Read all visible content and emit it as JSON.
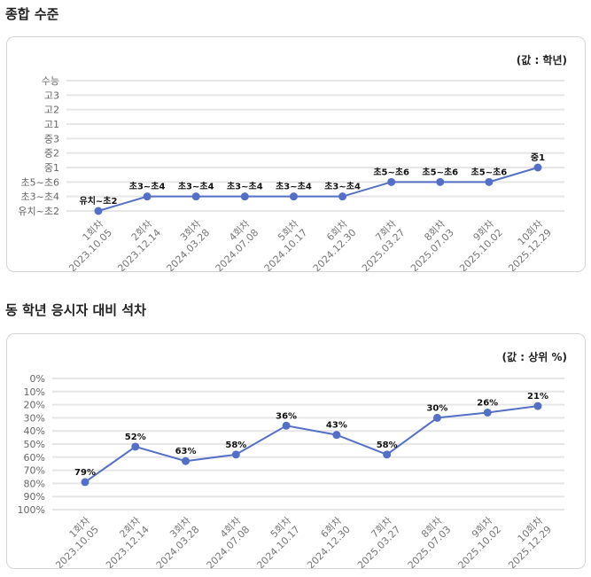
{
  "chart_data": [
    {
      "type": "line",
      "title": "종합 수준",
      "unit_label": "(값 : 학년)",
      "categories": [
        [
          "1회차",
          "2023.10.05"
        ],
        [
          "2회차",
          "2023.12.14"
        ],
        [
          "3회차",
          "2024.03.28"
        ],
        [
          "4회차",
          "2024.07.08"
        ],
        [
          "5회차",
          "2024.10.17"
        ],
        [
          "6회차",
          "2024.12.30"
        ],
        [
          "7회차",
          "2025.03.27"
        ],
        [
          "8회차",
          "2025.07.03"
        ],
        [
          "9회차",
          "2025.10.02"
        ],
        [
          "10회차",
          "2025.12.29"
        ]
      ],
      "y_ticks": [
        "유치~초2",
        "초3~초4",
        "초5~초6",
        "중1",
        "중2",
        "중3",
        "고1",
        "고2",
        "고3",
        "수능"
      ],
      "values": [
        "유치~초2",
        "초3~초4",
        "초3~초4",
        "초3~초4",
        "초3~초4",
        "초3~초4",
        "초5~초6",
        "초5~초6",
        "초5~초6",
        "중1"
      ],
      "grid": true,
      "color": "#5470c6"
    },
    {
      "type": "line",
      "title": "동 학년 응시자 대비 석차",
      "unit_label": "(값 : 상위 %)",
      "categories": [
        [
          "1회차",
          "2023.10.05"
        ],
        [
          "2회차",
          "2023.12.14"
        ],
        [
          "3회차",
          "2024.03.28"
        ],
        [
          "4회차",
          "2024.07.08"
        ],
        [
          "5회차",
          "2024.10.17"
        ],
        [
          "6회차",
          "2024.12.30"
        ],
        [
          "7회차",
          "2025.03.27"
        ],
        [
          "8회차",
          "2025.07.03"
        ],
        [
          "9회차",
          "2025.10.02"
        ],
        [
          "10회차",
          "2025.12.29"
        ]
      ],
      "y_ticks": [
        "0%",
        "10%",
        "20%",
        "30%",
        "40%",
        "50%",
        "60%",
        "70%",
        "80%",
        "90%",
        "100%"
      ],
      "ylim": [
        0,
        100
      ],
      "y_inverted": true,
      "values": [
        79,
        52,
        63,
        58,
        36,
        43,
        58,
        30,
        26,
        21
      ],
      "data_labels": [
        "79%",
        "52%",
        "63%",
        "58%",
        "36%",
        "43%",
        "58%",
        "30%",
        "26%",
        "21%"
      ],
      "grid": true,
      "color": "#5470c6"
    }
  ]
}
